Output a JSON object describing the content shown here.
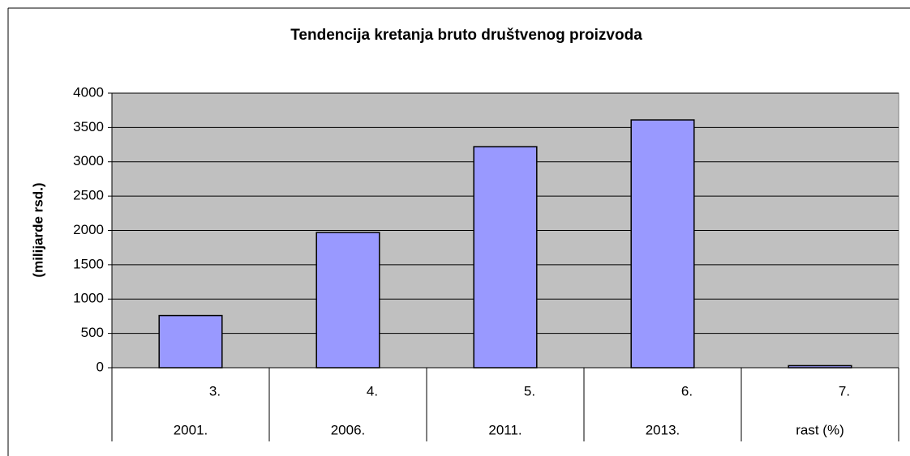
{
  "chart_data": {
    "type": "bar",
    "title": "Tendencija kretanja bruto društvenog proizvoda",
    "y_label": "(milijarde rsd.)",
    "category_codes": [
      "3.",
      "4.",
      "5.",
      "6.",
      "7."
    ],
    "categories": [
      "2001.",
      "2006.",
      "2011.",
      "2013.",
      "rast (%)"
    ],
    "values": [
      760,
      1970,
      3220,
      3610,
      30
    ],
    "color": "#9999ff",
    "ylim": [
      0,
      4000
    ],
    "yticks": [
      0,
      500,
      1000,
      1500,
      2000,
      2500,
      3000,
      3500,
      4000
    ],
    "grid": true
  }
}
